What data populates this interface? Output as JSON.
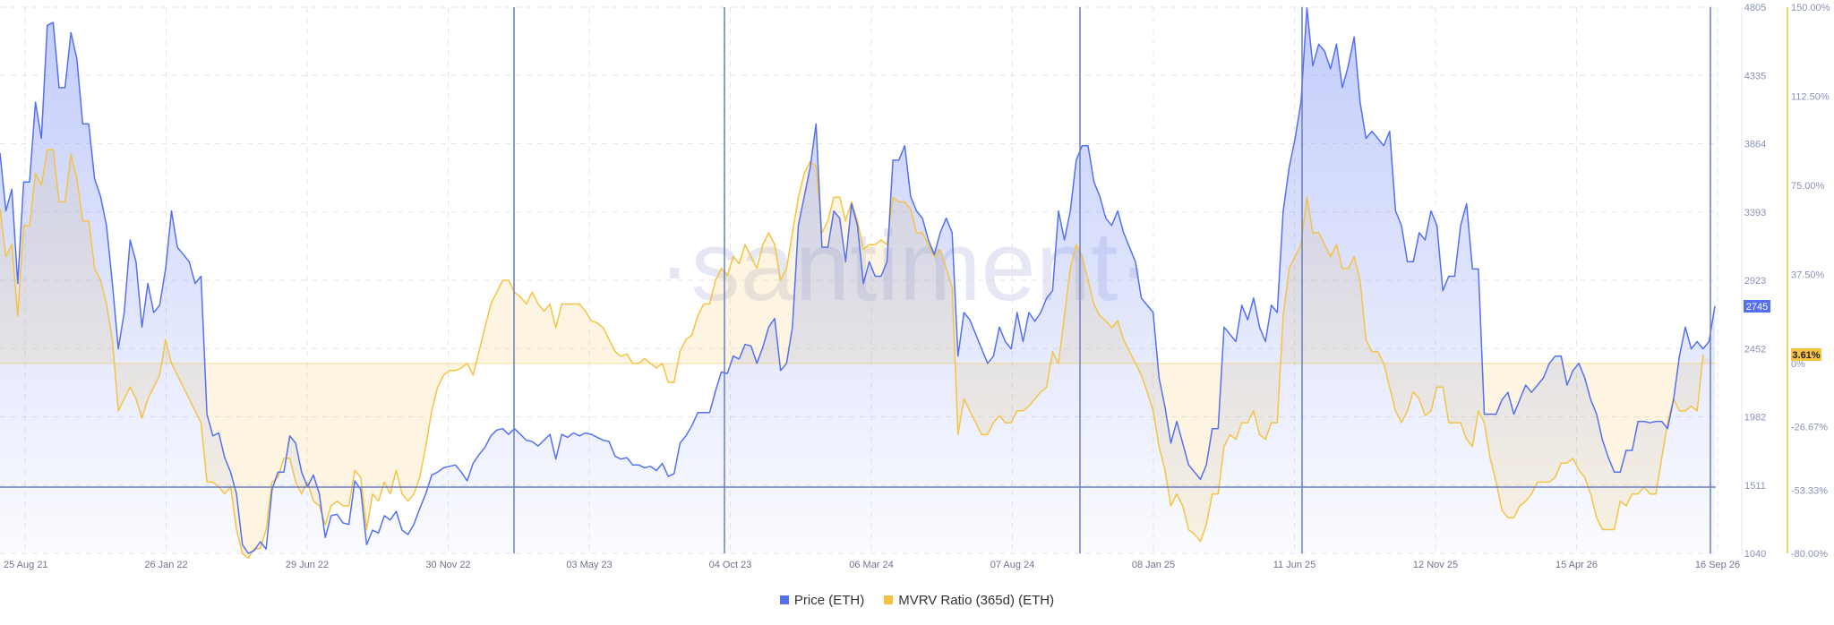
{
  "watermark": "·santiment·",
  "legend": {
    "items": [
      {
        "label": "Price (ETH)",
        "color": "#5470f0"
      },
      {
        "label": "MVRV Ratio (365d) (ETH)",
        "color": "#f5c344"
      }
    ]
  },
  "badges": {
    "price": "2745",
    "mvrv": "3.61%"
  },
  "chart_data": {
    "type": "line",
    "x_ticks": [
      "25 Aug 21",
      "26 Jan 22",
      "29 Jun 22",
      "30 Nov 22",
      "03 May 23",
      "04 Oct 23",
      "06 Mar 24",
      "07 Aug 24",
      "08 Jan 25",
      "11 Jun 25",
      "12 Nov 25",
      "15 Apr 26",
      "16 Sep 26"
    ],
    "y_left_ticks": [
      "4805",
      "4335",
      "3864",
      "3393",
      "2923",
      "2452",
      "1982",
      "1511",
      "1040"
    ],
    "y_right_ticks": [
      "150.00%",
      "112.50%",
      "75.00%",
      "37.50%",
      "0%",
      "-26.67%",
      "-53.33%",
      "-80.00%"
    ],
    "y_left_range": [
      1040,
      4805
    ],
    "y_right_range": [
      -80,
      150
    ],
    "grid": true,
    "legend_position": "bottom-center",
    "series": [
      {
        "name": "Price (ETH)",
        "color": "#5470f0",
        "axis": "left",
        "values": [
          3800,
          3400,
          3550,
          2900,
          3600,
          3600,
          4150,
          3900,
          4680,
          4700,
          4250,
          4250,
          4630,
          4450,
          4000,
          4000,
          3620,
          3500,
          3300,
          2900,
          2450,
          2700,
          3200,
          3050,
          2600,
          2900,
          2700,
          2750,
          3000,
          3400,
          3150,
          3100,
          3050,
          2900,
          2950,
          2000,
          1850,
          1870,
          1700,
          1600,
          1450,
          1100,
          1040,
          1060,
          1120,
          1070,
          1480,
          1600,
          1600,
          1850,
          1800,
          1600,
          1500,
          1580,
          1450,
          1150,
          1300,
          1310,
          1250,
          1240,
          1540,
          1480,
          1100,
          1200,
          1180,
          1300,
          1270,
          1330,
          1200,
          1170,
          1240,
          1350,
          1450,
          1580,
          1600,
          1630,
          1640,
          1650,
          1600,
          1540,
          1660,
          1720,
          1770,
          1850,
          1890,
          1900,
          1860,
          1900,
          1860,
          1820,
          1810,
          1780,
          1820,
          1860,
          1690,
          1860,
          1840,
          1870,
          1850,
          1870,
          1860,
          1840,
          1820,
          1810,
          1710,
          1690,
          1700,
          1650,
          1650,
          1630,
          1640,
          1610,
          1660,
          1570,
          1590,
          1800,
          1850,
          1920,
          2010,
          2010,
          2010,
          2160,
          2290,
          2280,
          2400,
          2380,
          2480,
          2470,
          2350,
          2460,
          2600,
          2660,
          2300,
          2350,
          2600,
          3300,
          3500,
          3700,
          4000,
          3150,
          3150,
          3400,
          3350,
          3050,
          3450,
          3300,
          2900,
          3050,
          2950,
          2950,
          3050,
          3750,
          3750,
          3850,
          3500,
          3400,
          3350,
          3200,
          3100,
          3250,
          3350,
          3250,
          2400,
          2700,
          2650,
          2550,
          2450,
          2350,
          2400,
          2600,
          2500,
          2450,
          2700,
          2500,
          2700,
          2640,
          2700,
          2800,
          2850,
          3400,
          3200,
          3400,
          3750,
          3850,
          3850,
          3600,
          3500,
          3350,
          3300,
          3400,
          3250,
          3150,
          3050,
          2800,
          2750,
          2700,
          2250,
          2050,
          1800,
          1950,
          1800,
          1650,
          1600,
          1550,
          1650,
          1900,
          1900,
          2600,
          2550,
          2500,
          2750,
          2650,
          2800,
          2600,
          2500,
          2750,
          2700,
          3400,
          3700,
          3900,
          4150,
          4800,
          4400,
          4550,
          4500,
          4380,
          4550,
          4250,
          4400,
          4600,
          4150,
          3900,
          3950,
          3900,
          3850,
          3950,
          3400,
          3300,
          3050,
          3050,
          3250,
          3200,
          3400,
          3300,
          2850,
          2950,
          2950,
          3300,
          3450,
          3000,
          3000,
          2000,
          2000,
          2000,
          2100,
          2150,
          2000,
          2100,
          2200,
          2150,
          2200,
          2250,
          2350,
          2400,
          2400,
          2200,
          2300,
          2350,
          2250,
          2100,
          2000,
          1820,
          1700,
          1600,
          1600,
          1750,
          1750,
          1950,
          1950,
          1940,
          1950,
          1950,
          1900,
          2100,
          2400,
          2600,
          2450,
          2500,
          2450,
          2500,
          2745
        ]
      },
      {
        "name": "MVRV Ratio (365d) (ETH)",
        "color": "#f5c344",
        "axis": "right",
        "values": [
          65,
          45,
          50,
          20,
          58,
          58,
          80,
          75,
          90,
          90,
          68,
          68,
          88,
          78,
          60,
          60,
          40,
          35,
          25,
          10,
          -20,
          -15,
          -10,
          -15,
          -23,
          -15,
          -10,
          -5,
          10,
          0,
          -5,
          -10,
          -15,
          -20,
          -25,
          -50,
          -50,
          -52,
          -55,
          -52,
          -70,
          -80,
          -82,
          -78,
          -78,
          -70,
          -50,
          -48,
          -40,
          -40,
          -50,
          -55,
          -50,
          -58,
          -60,
          -68,
          -60,
          -58,
          -60,
          -60,
          -45,
          -48,
          -70,
          -55,
          -58,
          -50,
          -55,
          -45,
          -55,
          -58,
          -55,
          -48,
          -35,
          -20,
          -10,
          -5,
          -3,
          -3,
          -2,
          0,
          -5,
          5,
          15,
          25,
          30,
          35,
          35,
          30,
          28,
          25,
          30,
          25,
          22,
          25,
          15,
          25,
          25,
          25,
          25,
          22,
          18,
          17,
          15,
          10,
          5,
          3,
          4,
          0,
          0,
          2,
          0,
          -2,
          0,
          -8,
          -8,
          5,
          10,
          12,
          20,
          25,
          25,
          35,
          40,
          37,
          45,
          42,
          50,
          45,
          40,
          50,
          55,
          50,
          35,
          40,
          55,
          70,
          80,
          85,
          83,
          55,
          60,
          70,
          70,
          60,
          68,
          60,
          48,
          50,
          50,
          52,
          50,
          70,
          68,
          68,
          65,
          55,
          55,
          50,
          45,
          48,
          40,
          32,
          -30,
          -15,
          -20,
          -25,
          -30,
          -30,
          -25,
          -22,
          -25,
          -25,
          -20,
          -20,
          -18,
          -15,
          -12,
          -10,
          5,
          0,
          20,
          40,
          50,
          45,
          35,
          25,
          20,
          18,
          15,
          18,
          10,
          5,
          0,
          -5,
          -12,
          -20,
          -35,
          -45,
          -60,
          -55,
          -60,
          -70,
          -72,
          -75,
          -68,
          -55,
          -55,
          -35,
          -30,
          -32,
          -25,
          -25,
          -20,
          -30,
          -32,
          -25,
          -25,
          20,
          40,
          45,
          50,
          70,
          55,
          55,
          50,
          45,
          50,
          40,
          40,
          45,
          35,
          10,
          5,
          5,
          0,
          -10,
          -20,
          -25,
          -20,
          -12,
          -15,
          -22,
          -20,
          -10,
          -10,
          -25,
          -25,
          -25,
          -32,
          -35,
          -20,
          -25,
          -40,
          -50,
          -62,
          -65,
          -65,
          -60,
          -58,
          -55,
          -50,
          -50,
          -50,
          -48,
          -42,
          -42,
          -40,
          -45,
          -48,
          -55,
          -65,
          -70,
          -70,
          -70,
          -58,
          -60,
          -55,
          -55,
          -52,
          -55,
          -55,
          -40,
          -25,
          -15,
          -20,
          -20,
          -18,
          -20,
          3.61
        ]
      }
    ]
  }
}
